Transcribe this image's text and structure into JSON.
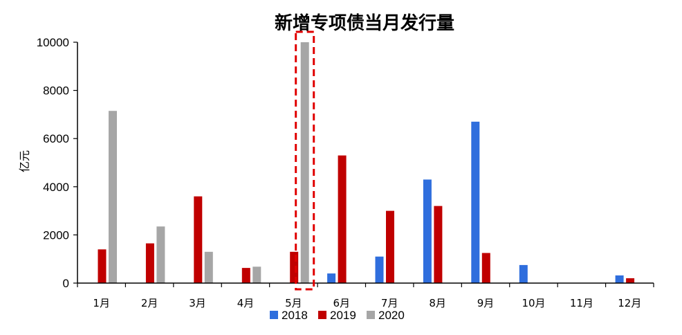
{
  "chart_data": {
    "type": "bar",
    "title": "新增专项债当月发行量",
    "xlabel": "",
    "ylabel": "亿元",
    "categories": [
      "1月",
      "2月",
      "3月",
      "4月",
      "5月",
      "6月",
      "7月",
      "8月",
      "9月",
      "10月",
      "11月",
      "12月"
    ],
    "series": [
      {
        "name": "2018",
        "color": "#2F6EDD",
        "values": [
          0,
          0,
          0,
          0,
          0,
          400,
          1100,
          4300,
          6700,
          750,
          0,
          320
        ]
      },
      {
        "name": "2019",
        "color": "#C00000",
        "values": [
          1400,
          1650,
          3600,
          630,
          1300,
          5300,
          3000,
          3200,
          1250,
          0,
          0,
          200
        ]
      },
      {
        "name": "2020",
        "color": "#A6A6A6",
        "values": [
          7150,
          2350,
          1300,
          680,
          10000,
          null,
          null,
          null,
          null,
          null,
          null,
          null
        ]
      }
    ],
    "ylim": [
      0,
      10000
    ],
    "yticks": [
      0,
      2000,
      4000,
      6000,
      8000,
      10000
    ],
    "grid": false,
    "legend": "bottom-center",
    "highlight": {
      "category_index": 4,
      "series_index": 2,
      "color": "#E00000"
    }
  }
}
